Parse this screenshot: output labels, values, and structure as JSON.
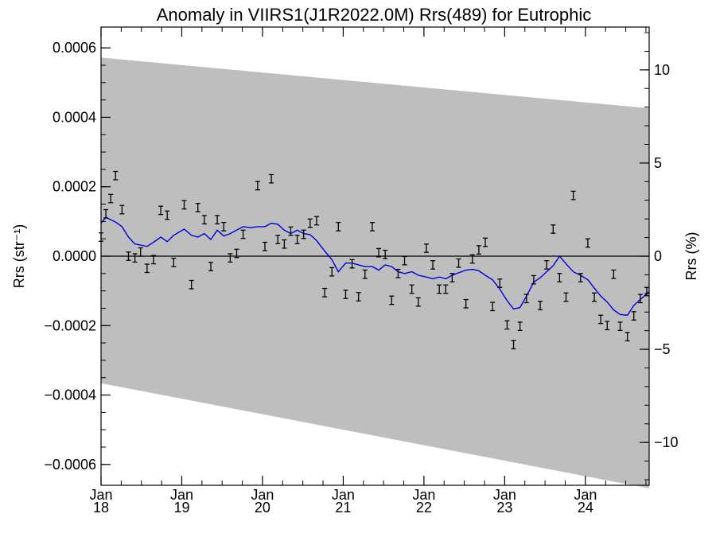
{
  "chart_data": {
    "type": "scatter",
    "title": "Anomaly in VIIRS1(J1R2022.0M) Rrs(489) for Eutrophic",
    "xlabel": "",
    "ylabel": "Rrs (str⁻¹)",
    "y2label": "Rrs (%)",
    "xlim": [
      2018.0,
      2024.79
    ],
    "ylim": [
      -0.00066,
      0.00066
    ],
    "y2lim": [
      -12.3,
      12.3
    ],
    "x_ticks": [
      {
        "value": 2018,
        "label_line1": "Jan",
        "label_line2": "18"
      },
      {
        "value": 2019,
        "label_line1": "Jan",
        "label_line2": "19"
      },
      {
        "value": 2020,
        "label_line1": "Jan",
        "label_line2": "20"
      },
      {
        "value": 2021,
        "label_line1": "Jan",
        "label_line2": "21"
      },
      {
        "value": 2022,
        "label_line1": "Jan",
        "label_line2": "22"
      },
      {
        "value": 2023,
        "label_line1": "Jan",
        "label_line2": "23"
      },
      {
        "value": 2024,
        "label_line1": "Jan",
        "label_line2": "24"
      }
    ],
    "y_ticks": [
      {
        "value": 0.0006,
        "label": "0.0006"
      },
      {
        "value": 0.0004,
        "label": "0.0004"
      },
      {
        "value": 0.0002,
        "label": "0.0002"
      },
      {
        "value": 0.0,
        "label": "0.0000"
      },
      {
        "value": -0.0002,
        "label": "−0.0002"
      },
      {
        "value": -0.0004,
        "label": "−0.0004"
      },
      {
        "value": -0.0006,
        "label": "−0.0006"
      }
    ],
    "y2_ticks": [
      {
        "value": 10,
        "label": "10"
      },
      {
        "value": 5,
        "label": "5"
      },
      {
        "value": 0,
        "label": "0"
      },
      {
        "value": -5,
        "label": "−5"
      },
      {
        "value": -10,
        "label": "−10"
      }
    ],
    "band": {
      "x": [
        2018.0,
        2024.79
      ],
      "upper": [
        0.000572,
        0.000426
      ],
      "lower": [
        -0.000366,
        -0.000669
      ],
      "color": "#bebebe"
    },
    "zero_line": true,
    "series": [
      {
        "kind": "error_points",
        "color": "#000000",
        "errbar": 1.2e-05,
        "x": [
          2018.0,
          2018.06,
          2018.12,
          2018.18,
          2018.26,
          2018.34,
          2018.42,
          2018.49,
          2018.57,
          2018.65,
          2018.74,
          2018.82,
          2018.9,
          2019.03,
          2019.12,
          2019.2,
          2019.28,
          2019.36,
          2019.44,
          2019.52,
          2019.6,
          2019.68,
          2019.76,
          2019.94,
          2020.03,
          2020.11,
          2020.19,
          2020.27,
          2020.35,
          2020.43,
          2020.51,
          2020.59,
          2020.67,
          2020.77,
          2020.86,
          2020.94,
          2021.03,
          2021.11,
          2021.19,
          2021.27,
          2021.36,
          2021.44,
          2021.52,
          2021.6,
          2021.68,
          2021.76,
          2021.85,
          2021.93,
          2022.03,
          2022.11,
          2022.19,
          2022.27,
          2022.35,
          2022.43,
          2022.52,
          2022.6,
          2022.68,
          2022.76,
          2022.85,
          2022.94,
          2023.03,
          2023.11,
          2023.19,
          2023.27,
          2023.36,
          2023.44,
          2023.52,
          2023.6,
          2023.68,
          2023.76,
          2023.85,
          2023.94,
          2024.03,
          2024.11,
          2024.19,
          2024.27,
          2024.35,
          2024.43,
          2024.52,
          2024.6,
          2024.68,
          2024.76
        ],
        "y": [
          5.5e-05,
          0.000122,
          0.000166,
          0.000232,
          0.000134,
          0.0,
          -5e-06,
          1.2e-05,
          -3.5e-05,
          -1e-05,
          0.000132,
          0.000118,
          -1.8e-05,
          0.000148,
          -8.2e-05,
          0.00014,
          0.000105,
          -3e-05,
          0.000105,
          8.5e-05,
          -5e-06,
          8e-06,
          6.3e-05,
          0.000203,
          2.8e-05,
          0.000223,
          4.8e-05,
          3.5e-05,
          7.2e-05,
          4.8e-05,
          6.3e-05,
          9.5e-05,
          0.000102,
          -0.000105,
          -4.5e-05,
          8.5e-05,
          -0.00011,
          -2.2e-05,
          -0.000117,
          -5.2e-05,
          8.5e-05,
          1e-05,
          5e-06,
          -0.000127,
          -5e-05,
          -1.3e-05,
          -9.5e-05,
          -0.000132,
          2.3e-05,
          -2.5e-05,
          -9.5e-05,
          -9.5e-05,
          -6.2e-05,
          -2e-05,
          -0.000137,
          -8e-06,
          1.8e-05,
          4e-05,
          -0.000145,
          -7.8e-05,
          -0.000198,
          -0.000255,
          -0.000202,
          -0.000122,
          -6.8e-05,
          -0.000142,
          -2.5e-05,
          7.8e-05,
          -6.2e-05,
          -0.000118,
          0.000175,
          -6.2e-05,
          3.8e-05,
          -0.000118,
          -0.000182,
          -0.0002,
          -5.2e-05,
          -0.000202,
          -0.000232,
          -0.000172,
          -0.000122,
          -0.000102
        ]
      },
      {
        "kind": "line",
        "color": "#0000dd",
        "x": [
          2018.0,
          2018.06,
          2018.12,
          2018.18,
          2018.26,
          2018.34,
          2018.42,
          2018.49,
          2018.57,
          2018.65,
          2018.74,
          2018.82,
          2018.9,
          2019.03,
          2019.12,
          2019.2,
          2019.28,
          2019.36,
          2019.44,
          2019.52,
          2019.6,
          2019.68,
          2019.76,
          2019.85,
          2019.94,
          2020.03,
          2020.11,
          2020.19,
          2020.27,
          2020.35,
          2020.43,
          2020.51,
          2020.59,
          2020.67,
          2020.77,
          2020.86,
          2020.94,
          2021.03,
          2021.11,
          2021.19,
          2021.27,
          2021.36,
          2021.44,
          2021.52,
          2021.6,
          2021.68,
          2021.76,
          2021.85,
          2021.93,
          2022.03,
          2022.11,
          2022.19,
          2022.27,
          2022.35,
          2022.43,
          2022.52,
          2022.6,
          2022.68,
          2022.76,
          2022.85,
          2022.94,
          2023.03,
          2023.11,
          2023.19,
          2023.27,
          2023.36,
          2023.44,
          2023.52,
          2023.6,
          2023.68,
          2023.76,
          2023.85,
          2023.94,
          2024.03,
          2024.11,
          2024.19,
          2024.27,
          2024.35,
          2024.43,
          2024.52,
          2024.6,
          2024.68,
          2024.79
        ],
        "y": [
          9.5e-05,
          0.000112,
          0.000105,
          9.8e-05,
          8.5e-05,
          5.5e-05,
          3.5e-05,
          3.2e-05,
          2.8e-05,
          4e-05,
          5.5e-05,
          4.2e-05,
          6e-05,
          7.8e-05,
          6e-05,
          5.5e-05,
          6.5e-05,
          4.8e-05,
          7.5e-05,
          5.8e-05,
          6.5e-05,
          7.5e-05,
          8.5e-05,
          8.2e-05,
          8.5e-05,
          8.5e-05,
          9.5e-05,
          9.2e-05,
          7.5e-05,
          6.5e-05,
          7.5e-05,
          6.5e-05,
          6.2e-05,
          4.5e-05,
          1.5e-05,
          -1e-05,
          -4.5e-05,
          -2e-05,
          -2e-05,
          -2.5e-05,
          -3e-05,
          -3e-05,
          -4e-05,
          -2.5e-05,
          -3e-05,
          -4.5e-05,
          -5e-05,
          -4.5e-05,
          -5.5e-05,
          -6e-05,
          -6.5e-05,
          -6e-05,
          -6.5e-05,
          -5.5e-05,
          -4.8e-05,
          -4e-05,
          -3.8e-05,
          -4.2e-05,
          -5.5e-05,
          -6.8e-05,
          -9.5e-05,
          -0.000128,
          -0.000152,
          -0.000148,
          -0.000115,
          -7.5e-05,
          -6.2e-05,
          -4.5e-05,
          -2.8e-05,
          0.0,
          -2.2e-05,
          -4.5e-05,
          -5.5e-05,
          -6.8e-05,
          -9.2e-05,
          -0.000115,
          -0.000132,
          -0.000155,
          -0.000168,
          -0.00017,
          -0.000142,
          -0.000125,
          -0.000102
        ]
      }
    ]
  }
}
